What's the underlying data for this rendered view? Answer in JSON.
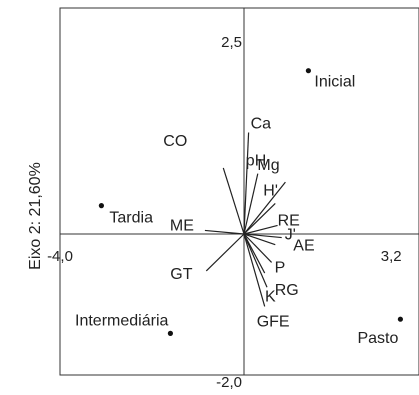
{
  "chart_data": {
    "type": "scatter",
    "subtype": "biplot",
    "title": "",
    "xlabel": "",
    "ylabel": "Eixo 2: 21,60%",
    "xlim": [
      -4.0,
      3.2
    ],
    "ylim": [
      -2.0,
      2.5
    ],
    "x_tick_labels": [
      {
        "value": -4.0,
        "label": "-4,0"
      },
      {
        "value": 3.2,
        "label": "3,2"
      }
    ],
    "y_tick_labels": [
      {
        "value": 2.5,
        "label": "2,5"
      },
      {
        "value": -2.0,
        "label": "-2,0"
      }
    ],
    "grid": false,
    "reference_lines": {
      "x": 0,
      "y": 0
    },
    "points": [
      {
        "label": "Inicial",
        "x": 1.4,
        "y": 2.3
      },
      {
        "label": "Tardia",
        "x": -3.1,
        "y": 0.4
      },
      {
        "label": "Intermediária",
        "x": -1.6,
        "y": -1.4
      },
      {
        "label": "Pasto",
        "x": 3.4,
        "y": -1.2
      }
    ],
    "vectors": [
      {
        "label": "Ca",
        "x": 0.1,
        "y": 1.43
      },
      {
        "label": "CO",
        "x": -0.45,
        "y": 0.93
      },
      {
        "label": "pH",
        "x": 0.3,
        "y": 0.85
      },
      {
        "label": "Mg",
        "x": 0.9,
        "y": 0.73
      },
      {
        "label": "H'",
        "x": 0.68,
        "y": 0.43
      },
      {
        "label": "RE",
        "x": 0.73,
        "y": 0.12
      },
      {
        "label": "ME",
        "x": -0.85,
        "y": 0.05
      },
      {
        "label": "J'",
        "x": 0.82,
        "y": -0.05
      },
      {
        "label": "AE",
        "x": 0.68,
        "y": -0.15
      },
      {
        "label": "GT",
        "x": -0.82,
        "y": -0.52
      },
      {
        "label": "P",
        "x": 0.6,
        "y": -0.4
      },
      {
        "label": "RG",
        "x": 0.45,
        "y": -0.55
      },
      {
        "label": "K",
        "x": 0.5,
        "y": -0.75
      },
      {
        "label": "GFE",
        "x": 0.45,
        "y": -1.02
      }
    ]
  }
}
